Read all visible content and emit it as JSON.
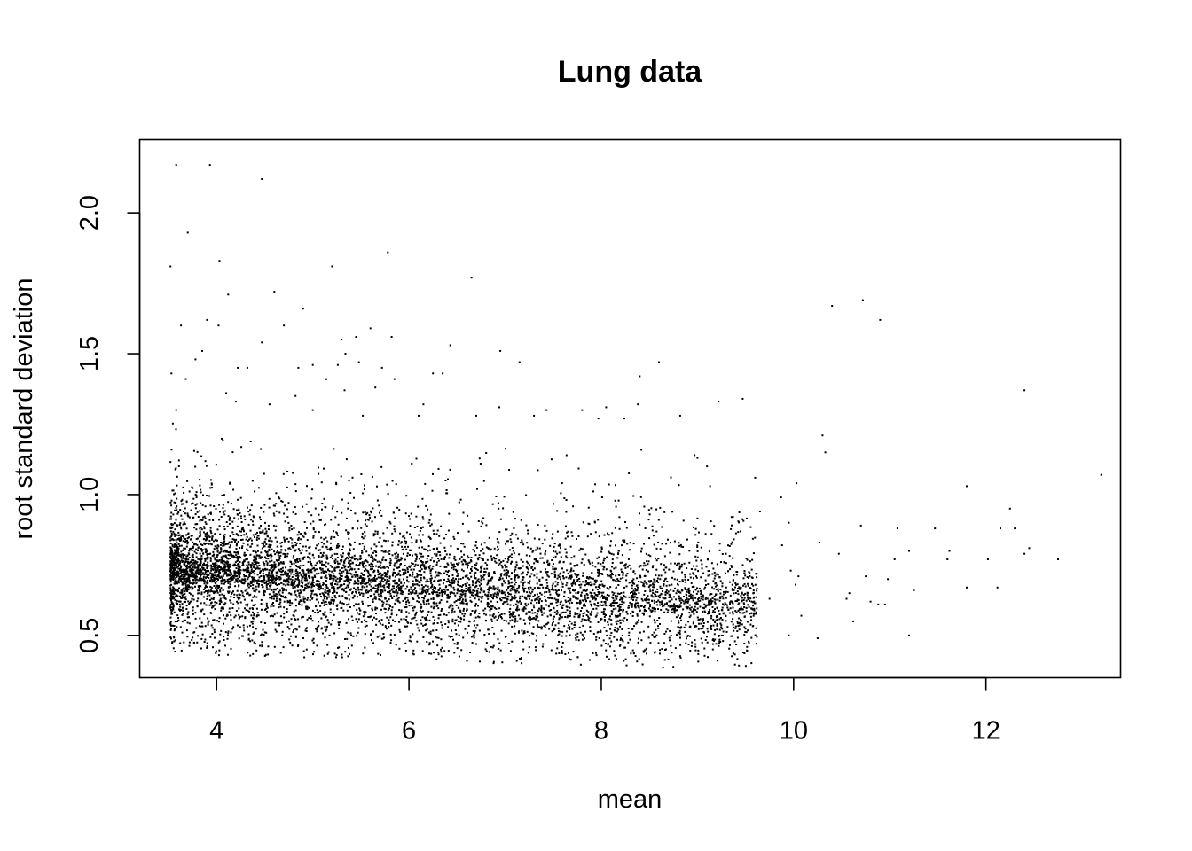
{
  "chart_data": {
    "type": "scatter",
    "title": "Lung data",
    "xlabel": "mean",
    "ylabel": "root standard deviation",
    "xlim": [
      3.2,
      13.4
    ],
    "ylim": [
      0.35,
      2.26
    ],
    "x_ticks": [
      {
        "value": 4,
        "label": "4"
      },
      {
        "value": 6,
        "label": "6"
      },
      {
        "value": 8,
        "label": "8"
      },
      {
        "value": 10,
        "label": "10"
      },
      {
        "value": 12,
        "label": "12"
      }
    ],
    "y_ticks": [
      {
        "value": 0.5,
        "label": "0.5"
      },
      {
        "value": 1.0,
        "label": "1.0"
      },
      {
        "value": 1.5,
        "label": "1.5"
      },
      {
        "value": 2.0,
        "label": "2.0"
      }
    ],
    "grid": false,
    "legend": "none",
    "point_color": "#000000",
    "points": [
      [
        3.58,
        2.17
      ],
      [
        3.93,
        2.17
      ],
      [
        4.47,
        2.12
      ],
      [
        3.7,
        1.93
      ],
      [
        3.52,
        1.81
      ],
      [
        4.03,
        1.83
      ],
      [
        5.2,
        1.81
      ],
      [
        5.78,
        1.86
      ],
      [
        6.65,
        1.77
      ],
      [
        4.6,
        1.72
      ],
      [
        4.12,
        1.71
      ],
      [
        4.9,
        1.66
      ],
      [
        3.63,
        1.6
      ],
      [
        3.9,
        1.62
      ],
      [
        4.02,
        1.6
      ],
      [
        4.7,
        1.6
      ],
      [
        10.4,
        1.67
      ],
      [
        10.72,
        1.69
      ],
      [
        10.9,
        1.62
      ],
      [
        4.47,
        1.54
      ],
      [
        5.3,
        1.55
      ],
      [
        5.45,
        1.56
      ],
      [
        5.6,
        1.59
      ],
      [
        6.43,
        1.53
      ],
      [
        6.95,
        1.51
      ],
      [
        3.85,
        1.51
      ],
      [
        3.78,
        1.48
      ],
      [
        5.82,
        1.56
      ],
      [
        7.15,
        1.47
      ],
      [
        8.6,
        1.47
      ],
      [
        4.22,
        1.45
      ],
      [
        4.32,
        1.45
      ],
      [
        4.85,
        1.45
      ],
      [
        5.0,
        1.46
      ],
      [
        5.26,
        1.46
      ],
      [
        5.48,
        1.47
      ],
      [
        5.72,
        1.45
      ],
      [
        6.25,
        1.43
      ],
      [
        6.35,
        1.43
      ],
      [
        8.4,
        1.42
      ],
      [
        3.53,
        1.43
      ],
      [
        3.68,
        1.41
      ],
      [
        5.34,
        1.5
      ],
      [
        5.85,
        1.41
      ],
      [
        5.65,
        1.38
      ],
      [
        4.1,
        1.36
      ],
      [
        4.2,
        1.33
      ],
      [
        4.82,
        1.35
      ],
      [
        5.33,
        1.37
      ],
      [
        6.15,
        1.32
      ],
      [
        6.94,
        1.31
      ],
      [
        7.43,
        1.3
      ],
      [
        7.8,
        1.3
      ],
      [
        8.05,
        1.31
      ],
      [
        8.38,
        1.32
      ],
      [
        9.22,
        1.33
      ],
      [
        9.47,
        1.34
      ],
      [
        12.4,
        1.37
      ],
      [
        3.58,
        1.3
      ],
      [
        4.55,
        1.32
      ],
      [
        5.0,
        1.3
      ],
      [
        5.52,
        1.28
      ],
      [
        6.1,
        1.28
      ],
      [
        6.7,
        1.28
      ],
      [
        7.3,
        1.28
      ],
      [
        7.97,
        1.27
      ],
      [
        8.24,
        1.27
      ],
      [
        8.82,
        1.28
      ],
      [
        10.3,
        1.21
      ],
      [
        10.33,
        1.15
      ],
      [
        13.2,
        1.07
      ],
      [
        11.8,
        1.03
      ],
      [
        10.03,
        1.04
      ],
      [
        9.6,
        1.06
      ],
      [
        9.1,
        1.1
      ],
      [
        8.97,
        1.14
      ],
      [
        9.0,
        1.13
      ],
      [
        12.3,
        0.88
      ],
      [
        12.15,
        0.88
      ],
      [
        12.25,
        0.95
      ],
      [
        11.47,
        0.88
      ],
      [
        11.08,
        0.88
      ],
      [
        11.62,
        0.8
      ],
      [
        11.2,
        0.8
      ],
      [
        11.6,
        0.77
      ],
      [
        12.02,
        0.77
      ],
      [
        12.75,
        0.77
      ],
      [
        12.4,
        0.79
      ],
      [
        12.45,
        0.81
      ],
      [
        11.8,
        0.67
      ],
      [
        12.12,
        0.67
      ],
      [
        11.05,
        0.77
      ],
      [
        10.98,
        0.7
      ],
      [
        10.95,
        0.61
      ],
      [
        10.88,
        0.61
      ],
      [
        10.8,
        0.62
      ],
      [
        11.25,
        0.66
      ],
      [
        11.2,
        0.5
      ],
      [
        10.55,
        0.63
      ],
      [
        10.58,
        0.65
      ],
      [
        10.25,
        0.49
      ],
      [
        10.08,
        0.57
      ],
      [
        9.95,
        0.5
      ],
      [
        10.02,
        0.68
      ],
      [
        10.05,
        0.71
      ],
      [
        10.47,
        0.79
      ],
      [
        10.7,
        0.89
      ],
      [
        10.75,
        0.71
      ],
      [
        10.62,
        0.55
      ],
      [
        10.27,
        0.83
      ],
      [
        9.95,
        0.9
      ],
      [
        9.87,
        0.99
      ],
      [
        9.88,
        0.82
      ],
      [
        9.97,
        0.73
      ],
      [
        9.75,
        0.63
      ],
      [
        9.65,
        0.94
      ]
    ]
  }
}
